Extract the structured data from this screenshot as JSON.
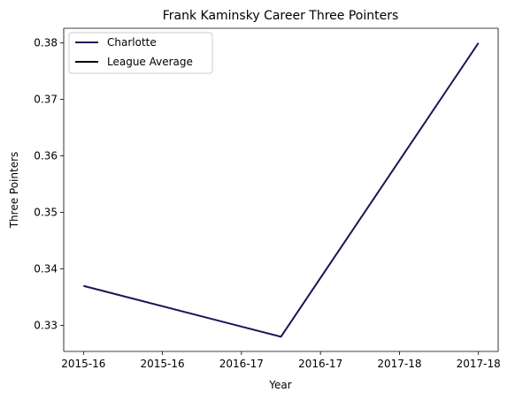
{
  "chart_data": {
    "type": "line",
    "title": "Frank Kaminsky Career Three Pointers",
    "xlabel": "Year",
    "ylabel": "Three Pointers",
    "x_tick_labels": [
      "2015-16",
      "2015-16",
      "2016-17",
      "2016-17",
      "2017-18",
      "2017-18"
    ],
    "x_tick_positions": [
      0,
      0.5,
      1,
      1.5,
      2,
      2.5
    ],
    "xlim": [
      -0.125,
      2.625
    ],
    "ylim": [
      0.3254,
      0.3826
    ],
    "y_ticks": [
      0.33,
      0.34,
      0.35,
      0.36,
      0.37,
      0.38
    ],
    "y_tick_labels": [
      "0.33",
      "0.34",
      "0.35",
      "0.36",
      "0.37",
      "0.38"
    ],
    "grid": false,
    "legend_position": "top-left",
    "series": [
      {
        "name": "Charlotte",
        "color": "#1f1359",
        "x": [
          0,
          1.25,
          2.5
        ],
        "y": [
          0.337,
          0.328,
          0.38
        ]
      },
      {
        "name": "League Average",
        "color": "#000000",
        "x": [],
        "y": []
      }
    ]
  }
}
